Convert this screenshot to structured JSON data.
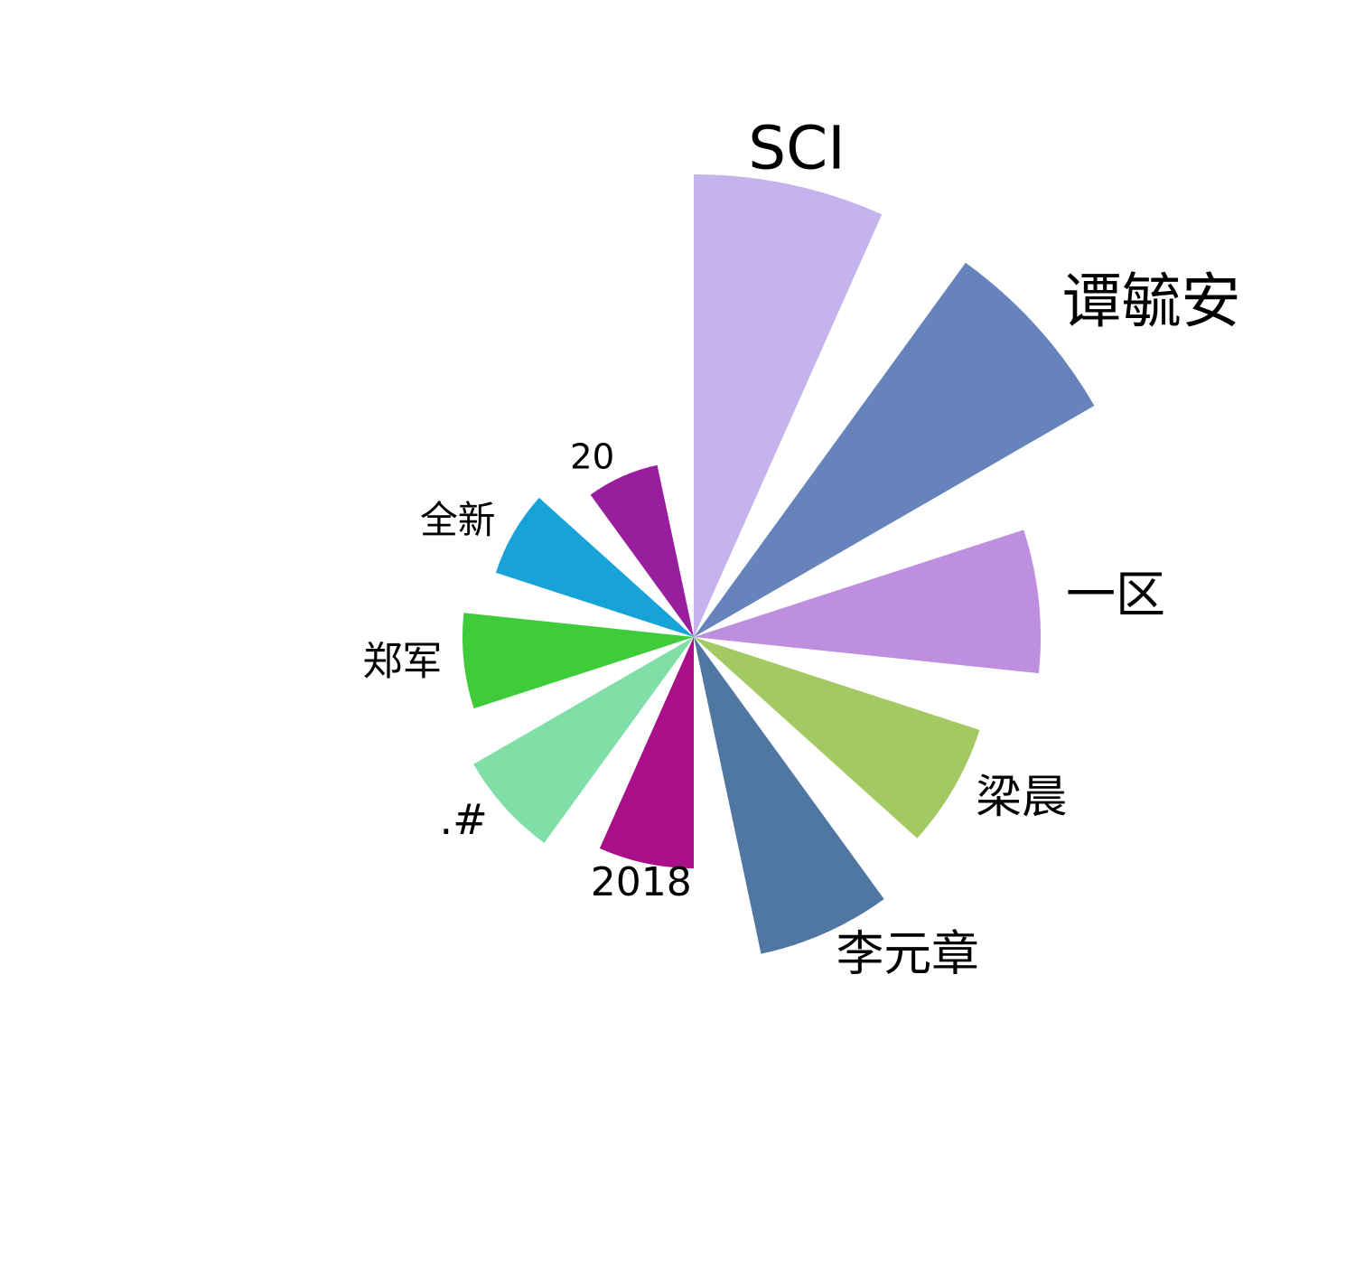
{
  "chart_data": {
    "type": "bar",
    "subtype": "nightingale-rose",
    "categories": [
      "SCI",
      "谭毓安",
      "一区",
      "梁晨",
      "李元章",
      "2018",
      ".#",
      "郑军",
      "全新",
      "20"
    ],
    "values": [
      100,
      100,
      75,
      65,
      70,
      50,
      55,
      50,
      45,
      38
    ],
    "colors": [
      "#c5b3ee",
      "#6684bb",
      "#bf8fdf",
      "#a3c962",
      "#5076a2",
      "#a80f88",
      "#80dfa7",
      "#3fcb3a",
      "#17a3d7",
      "#981e9e"
    ],
    "title": "",
    "grid": false,
    "legend": "none"
  }
}
